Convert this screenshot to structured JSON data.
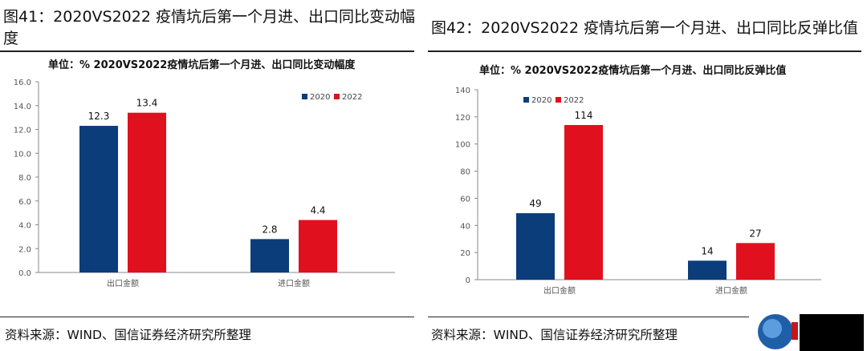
{
  "figures": [
    {
      "title": "图41：2020VS2022 疫情坑后第一个月进、出口同比变动幅度",
      "title_lines": [
        "图41：2020VS2022 疫情坑后第一个月进、出口同比变动幅",
        "度"
      ],
      "source": "资料来源：WIND、国信证券经济研究所整理"
    },
    {
      "title": "图42：2020VS2022 疫情坑后第一个月进、出口同比反弹比值",
      "source": "资料来源：WIND、国信证券经济研究所整理"
    }
  ],
  "chart_data": [
    {
      "type": "bar",
      "title": "单位：% 2020VS2022疫情坑后第一个月进、出口同比变动幅度",
      "categories": [
        "出口金额",
        "进口金额"
      ],
      "series": [
        {
          "name": "2020",
          "values": [
            12.3,
            2.8
          ],
          "labels": [
            "12.3",
            "2.8"
          ],
          "color": "#0b3d7a"
        },
        {
          "name": "2022",
          "values": [
            13.4,
            4.4
          ],
          "labels": [
            "13.4",
            "4.4"
          ],
          "color": "#e0101e"
        }
      ],
      "ylim": [
        0,
        16
      ],
      "yticks": [
        "0.0",
        "2.0",
        "4.0",
        "6.0",
        "8.0",
        "10.0",
        "12.0",
        "14.0",
        "16.0"
      ],
      "grid": false,
      "legend": "top-right"
    },
    {
      "type": "bar",
      "title": "单位：% 2020VS2022疫情坑后第一个月进、出口同比反弹比值",
      "categories": [
        "出口金额",
        "进口金额"
      ],
      "series": [
        {
          "name": "2020",
          "values": [
            49,
            14
          ],
          "labels": [
            "49",
            "14"
          ],
          "color": "#0b3d7a"
        },
        {
          "name": "2022",
          "values": [
            114,
            27
          ],
          "labels": [
            "114",
            "27"
          ],
          "color": "#e0101e"
        }
      ],
      "ylim": [
        0,
        140
      ],
      "yticks": [
        "0",
        "20",
        "40",
        "60",
        "80",
        "100",
        "120",
        "140"
      ],
      "grid": false,
      "legend": "top-left"
    }
  ]
}
